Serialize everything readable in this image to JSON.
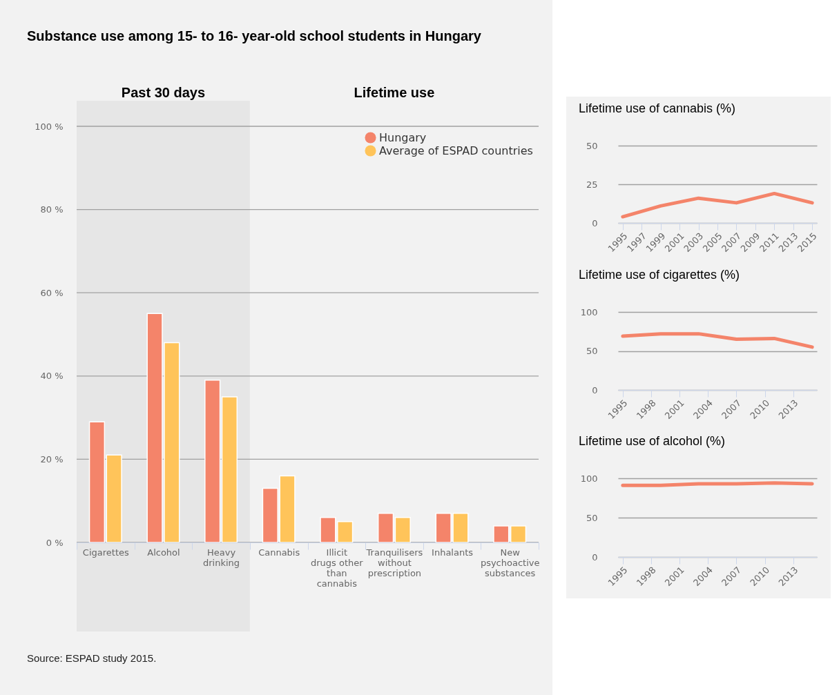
{
  "chart_data": [
    {
      "type": "bar",
      "title": "Substance use among 15- to 16- year-old school students in Hungary",
      "categories": [
        "Cigarettes",
        "Alcohol",
        "Heavy drinking",
        "Cannabis",
        "Illicit drugs other than cannabis",
        "Tranquilisers without prescription",
        "Inhalants",
        "New psychoactive substances"
      ],
      "series": [
        {
          "name": "Hungary",
          "color": "#f4846a",
          "values": [
            29,
            55,
            39,
            13,
            6,
            7,
            7,
            4
          ]
        },
        {
          "name": "Average of ESPAD countries",
          "color": "#ffc45a",
          "values": [
            21,
            48,
            35,
            16,
            5,
            6,
            7,
            4
          ]
        }
      ],
      "ylim": [
        0,
        100
      ],
      "yticks": [
        {
          "value": 0,
          "label": "0 %"
        },
        {
          "value": 20,
          "label": "20 %"
        },
        {
          "value": 40,
          "label": "40 %"
        },
        {
          "value": 60,
          "label": "60 %"
        },
        {
          "value": 80,
          "label": "80 %"
        },
        {
          "value": 100,
          "label": "100 %"
        }
      ],
      "grid": "y",
      "legend": "top right",
      "bands": [
        {
          "axis": "x",
          "from": "Cigarettes",
          "to": "Heavy drinking",
          "label": "Past 30 days",
          "color": "#e6e6e6"
        }
      ],
      "annotations": [
        "Lifetime use",
        "Source: ESPAD study 2015."
      ]
    },
    {
      "type": "line",
      "title": "Lifetime use of cannabis (%)",
      "x": [
        1995,
        1999,
        2003,
        2007,
        2011,
        2015
      ],
      "series": [
        {
          "color": "#f4846a",
          "values": [
            4,
            11,
            16,
            13,
            19,
            13
          ]
        }
      ],
      "xlim": [
        1994.5,
        2015.5
      ],
      "xticks": [
        1995,
        1997,
        1999,
        2001,
        2003,
        2005,
        2007,
        2009,
        2011,
        2013,
        2015
      ],
      "ylim": [
        0,
        50
      ],
      "yticks": [
        0,
        25,
        50
      ],
      "grid": "y"
    },
    {
      "type": "line",
      "title": "Lifetime use of cigarettes (%)",
      "x": [
        1995,
        1999,
        2003,
        2007,
        2011,
        2015
      ],
      "series": [
        {
          "color": "#f4846a",
          "values": [
            69,
            72,
            72,
            65,
            66,
            55
          ]
        }
      ],
      "xlim": [
        1994.5,
        2015.5
      ],
      "xticks": [
        1995,
        1998,
        2001,
        2004,
        2007,
        2010,
        2013
      ],
      "ylim": [
        0,
        100
      ],
      "yticks": [
        0,
        50,
        100
      ],
      "grid": "y"
    },
    {
      "type": "line",
      "title": "Lifetime use of alcohol (%)",
      "x": [
        1995,
        1999,
        2003,
        2007,
        2011,
        2015
      ],
      "series": [
        {
          "color": "#f4846a",
          "values": [
            91,
            91,
            93,
            93,
            94,
            93
          ]
        }
      ],
      "xlim": [
        1994.5,
        2015.5
      ],
      "xticks": [
        1995,
        1998,
        2001,
        2004,
        2007,
        2010,
        2013
      ],
      "ylim": [
        0,
        100
      ],
      "yticks": [
        0,
        50,
        100
      ],
      "grid": "y"
    }
  ]
}
